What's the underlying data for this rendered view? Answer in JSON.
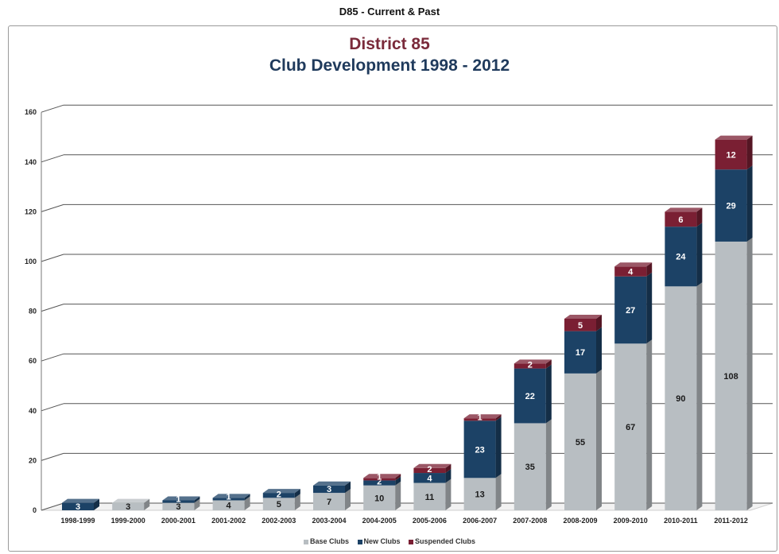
{
  "header": {
    "title": "D85 - Current & Past"
  },
  "chart_data": {
    "type": "bar",
    "stacked": true,
    "title": "District 85",
    "subtitle": "Club Development 1998 - 2012",
    "xlabel": "",
    "ylabel": "",
    "ylim": [
      0,
      160
    ],
    "yticks": [
      0,
      20,
      40,
      60,
      80,
      100,
      120,
      140,
      160
    ],
    "grid": true,
    "legend_position": "bottom",
    "categories": [
      "1998-1999",
      "1999-2000",
      "2000-2001",
      "2001-2002",
      "2002-2003",
      "2003-2004",
      "2004-2005",
      "2005-2006",
      "2006-2007",
      "2007-2008",
      "2008-2009",
      "2009-2010",
      "2010-2011",
      "2011-2012"
    ],
    "series": [
      {
        "name": "Base Clubs",
        "color": "#b8bec2",
        "label_color": "#1a1a1a",
        "values": [
          0,
          3,
          3,
          4,
          5,
          7,
          10,
          11,
          13,
          35,
          55,
          67,
          90,
          108
        ],
        "labels": [
          "",
          "3",
          "3",
          "4",
          "5",
          "7",
          "10",
          "11",
          "13",
          "35",
          "55",
          "67",
          "90",
          "108"
        ]
      },
      {
        "name": "New Clubs",
        "color": "#1c4266",
        "label_color": "#ffffff",
        "values": [
          3,
          0,
          1,
          1,
          2,
          3,
          2,
          4,
          23,
          22,
          17,
          27,
          24,
          29
        ],
        "labels": [
          "3",
          "",
          "1",
          "1",
          "2",
          "3",
          "2",
          "4",
          "23",
          "22",
          "17",
          "27",
          "24",
          "29"
        ]
      },
      {
        "name": "Suspended Clubs",
        "color": "#7a1f33",
        "label_color": "#ffffff",
        "values": [
          0,
          0,
          0,
          0,
          0,
          0,
          1,
          2,
          1,
          2,
          5,
          4,
          6,
          12
        ],
        "labels": [
          "",
          "",
          "",
          "",
          "",
          "",
          "1",
          "2",
          "1",
          "2",
          "5",
          "4",
          "6",
          "12"
        ]
      }
    ]
  }
}
